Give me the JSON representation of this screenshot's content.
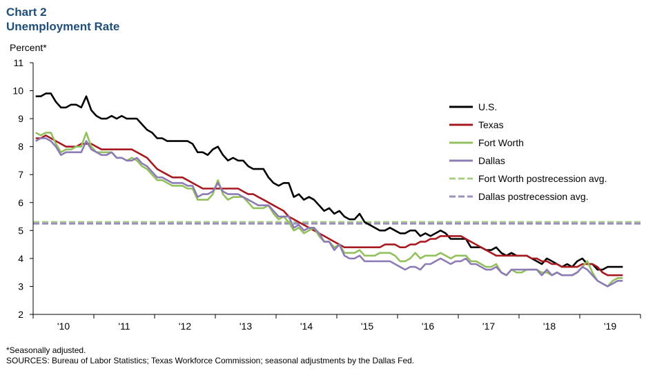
{
  "header": {
    "chart_number": "Chart 2",
    "title": "Unemployment Rate"
  },
  "footnotes": {
    "note": "*Seasonally adjusted.",
    "sources": "SOURCES: Bureau of Labor Statistics; Texas Workforce Commission; seasonal adjustments by the Dallas Fed."
  },
  "colors": {
    "us": "#000000",
    "texas": "#a6191e",
    "fort_worth": "#92c05c",
    "dallas": "#8c7bb5",
    "fw_avg": "#a9cd85",
    "dallas_avg": "#9d8fc1"
  },
  "chart_data": {
    "type": "line",
    "title": "Unemployment Rate",
    "ylabel": "Percent*",
    "xlabel": "",
    "ylim": [
      2,
      11
    ],
    "yticks": [
      2,
      3,
      4,
      5,
      6,
      7,
      8,
      9,
      10,
      11
    ],
    "x_tick_labels": [
      "'10",
      "'11",
      "'12",
      "'13",
      "'14",
      "'15",
      "'16",
      "'17",
      "'18",
      "'19"
    ],
    "x_start": "2009-07",
    "x_end": "2019-07",
    "frequency": "monthly",
    "grid": false,
    "legend_position": "right",
    "series": [
      {
        "name": "U.S.",
        "key": "us",
        "values": [
          9.8,
          9.8,
          9.9,
          9.9,
          9.6,
          9.4,
          9.4,
          9.5,
          9.5,
          9.4,
          9.8,
          9.3,
          9.1,
          9.0,
          9.0,
          9.1,
          9.0,
          9.1,
          9.0,
          9.0,
          9.0,
          8.8,
          8.6,
          8.5,
          8.3,
          8.3,
          8.2,
          8.2,
          8.2,
          8.2,
          8.2,
          8.1,
          7.8,
          7.8,
          7.7,
          7.9,
          8.0,
          7.7,
          7.5,
          7.6,
          7.5,
          7.5,
          7.3,
          7.2,
          7.2,
          7.2,
          6.9,
          6.7,
          6.6,
          6.7,
          6.7,
          6.2,
          6.3,
          6.1,
          6.2,
          6.1,
          5.9,
          5.7,
          5.8,
          5.6,
          5.7,
          5.5,
          5.4,
          5.4,
          5.6,
          5.3,
          5.2,
          5.1,
          5.0,
          5.0,
          5.1,
          5.0,
          4.9,
          4.9,
          5.0,
          5.0,
          4.8,
          4.9,
          4.8,
          4.9,
          5.0,
          4.9,
          4.7,
          4.7,
          4.7,
          4.7,
          4.4,
          4.4,
          4.4,
          4.3,
          4.3,
          4.4,
          4.2,
          4.1,
          4.2,
          4.1,
          4.1,
          4.1,
          4.0,
          3.9,
          3.8,
          4.0,
          3.9,
          3.8,
          3.7,
          3.8,
          3.7,
          3.9,
          4.0,
          3.8,
          3.8,
          3.6,
          3.6,
          3.7,
          3.7,
          3.7,
          3.7
        ]
      },
      {
        "name": "Texas",
        "key": "texas",
        "values": [
          8.3,
          8.3,
          8.4,
          8.3,
          8.2,
          8.1,
          8.0,
          8.0,
          8.0,
          8.1,
          8.1,
          8.1,
          8.0,
          7.9,
          7.9,
          7.9,
          7.9,
          7.9,
          7.9,
          7.9,
          7.8,
          7.7,
          7.6,
          7.4,
          7.2,
          7.1,
          7.0,
          6.9,
          6.9,
          6.9,
          6.8,
          6.7,
          6.6,
          6.5,
          6.5,
          6.5,
          6.5,
          6.5,
          6.5,
          6.5,
          6.5,
          6.4,
          6.3,
          6.3,
          6.2,
          6.1,
          6.0,
          5.9,
          5.8,
          5.7,
          5.5,
          5.4,
          5.3,
          5.2,
          5.1,
          5.0,
          4.9,
          4.8,
          4.7,
          4.6,
          4.5,
          4.4,
          4.4,
          4.4,
          4.4,
          4.4,
          4.4,
          4.4,
          4.4,
          4.5,
          4.5,
          4.5,
          4.4,
          4.4,
          4.5,
          4.5,
          4.6,
          4.6,
          4.7,
          4.7,
          4.8,
          4.8,
          4.8,
          4.8,
          4.8,
          4.7,
          4.6,
          4.5,
          4.4,
          4.3,
          4.2,
          4.1,
          4.1,
          4.1,
          4.1,
          4.1,
          4.1,
          4.1,
          4.0,
          4.0,
          3.9,
          3.9,
          3.8,
          3.8,
          3.7,
          3.7,
          3.7,
          3.7,
          3.8,
          3.8,
          3.8,
          3.7,
          3.5,
          3.4,
          3.4,
          3.4,
          3.4
        ]
      },
      {
        "name": "Fort Worth",
        "key": "fort_worth",
        "values": [
          8.5,
          8.4,
          8.5,
          8.5,
          8.1,
          7.8,
          7.9,
          7.9,
          8.0,
          8.0,
          8.5,
          8.0,
          7.8,
          7.8,
          7.8,
          7.8,
          7.6,
          7.6,
          7.5,
          7.6,
          7.5,
          7.3,
          7.2,
          7.0,
          6.8,
          6.8,
          6.7,
          6.6,
          6.6,
          6.6,
          6.5,
          6.5,
          6.1,
          6.1,
          6.1,
          6.3,
          6.8,
          6.3,
          6.1,
          6.2,
          6.2,
          6.2,
          6.0,
          5.8,
          5.8,
          5.8,
          5.9,
          5.6,
          5.4,
          5.5,
          5.3,
          5.0,
          5.1,
          4.9,
          5.0,
          5.1,
          4.8,
          4.6,
          4.6,
          4.4,
          4.5,
          4.2,
          4.2,
          4.2,
          4.3,
          4.1,
          4.1,
          4.1,
          4.2,
          4.2,
          4.2,
          4.1,
          3.9,
          3.9,
          4.0,
          4.2,
          4.0,
          4.1,
          4.1,
          4.1,
          4.2,
          4.1,
          4.0,
          4.1,
          4.1,
          4.1,
          3.9,
          3.9,
          3.8,
          3.7,
          3.7,
          3.8,
          3.5,
          3.4,
          3.6,
          3.5,
          3.5,
          3.6,
          3.6,
          3.6,
          3.5,
          3.5,
          3.4,
          3.5,
          3.4,
          3.4,
          3.4,
          3.5,
          3.7,
          3.9,
          3.5,
          3.2,
          3.1,
          3.0,
          3.2,
          3.3,
          3.3
        ]
      },
      {
        "name": "Dallas",
        "key": "dallas",
        "values": [
          8.2,
          8.3,
          8.3,
          8.2,
          8.0,
          7.7,
          7.8,
          7.8,
          7.8,
          7.8,
          8.2,
          7.9,
          7.8,
          7.7,
          7.7,
          7.8,
          7.6,
          7.6,
          7.5,
          7.5,
          7.6,
          7.4,
          7.3,
          7.1,
          6.9,
          6.9,
          6.8,
          6.7,
          6.7,
          6.7,
          6.6,
          6.6,
          6.2,
          6.3,
          6.3,
          6.4,
          6.7,
          6.4,
          6.3,
          6.3,
          6.3,
          6.2,
          6.1,
          6.0,
          5.9,
          5.9,
          5.9,
          5.7,
          5.5,
          5.5,
          5.5,
          5.1,
          5.2,
          5.0,
          5.1,
          5.1,
          4.9,
          4.6,
          4.6,
          4.3,
          4.5,
          4.1,
          4.0,
          4.0,
          4.1,
          3.9,
          3.9,
          3.9,
          3.9,
          3.9,
          3.9,
          3.8,
          3.7,
          3.6,
          3.7,
          3.7,
          3.6,
          3.8,
          3.8,
          3.9,
          4.0,
          3.9,
          3.8,
          3.9,
          3.9,
          4.0,
          3.8,
          3.8,
          3.7,
          3.6,
          3.6,
          3.7,
          3.5,
          3.4,
          3.6,
          3.6,
          3.6,
          3.6,
          3.6,
          3.6,
          3.4,
          3.6,
          3.4,
          3.5,
          3.4,
          3.4,
          3.4,
          3.5,
          3.7,
          3.6,
          3.4,
          3.2,
          3.1,
          3.0,
          3.1,
          3.2,
          3.2
        ]
      },
      {
        "name": "Fort Worth postrecession avg.",
        "key": "fw_avg",
        "constant": 5.3,
        "dashed": true
      },
      {
        "name": "Dallas postrecession avg.",
        "key": "dallas_avg",
        "constant": 5.25,
        "dashed": true
      }
    ]
  }
}
